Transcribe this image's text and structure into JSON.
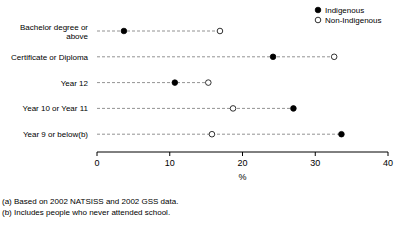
{
  "chart_data": {
    "type": "dot",
    "orientation": "horizontal",
    "categories": [
      "Bachelor degree or above",
      "Certificate or Diploma",
      "Year 12",
      "Year 10 or Year 11",
      "Year 9 or below(b)"
    ],
    "series": [
      {
        "name": "Indigenous",
        "color": "#000000",
        "marker": "circle",
        "values": [
          3.7,
          24.2,
          10.7,
          27.0,
          33.6
        ]
      },
      {
        "name": "Non-Indigenous",
        "color": "#000000",
        "marker": "circle_open",
        "values": [
          16.9,
          32.6,
          15.3,
          18.7,
          15.8
        ]
      }
    ],
    "xlim": [
      0,
      40
    ],
    "xticks": [
      0,
      10,
      20,
      30,
      40
    ],
    "xlabel": "%",
    "line_style": "dashed",
    "legend": "top-right",
    "notes": [
      "(a) Based on 2002 NATSISS and 2002 GSS data.",
      "(b) Includes people who never attended school."
    ]
  }
}
